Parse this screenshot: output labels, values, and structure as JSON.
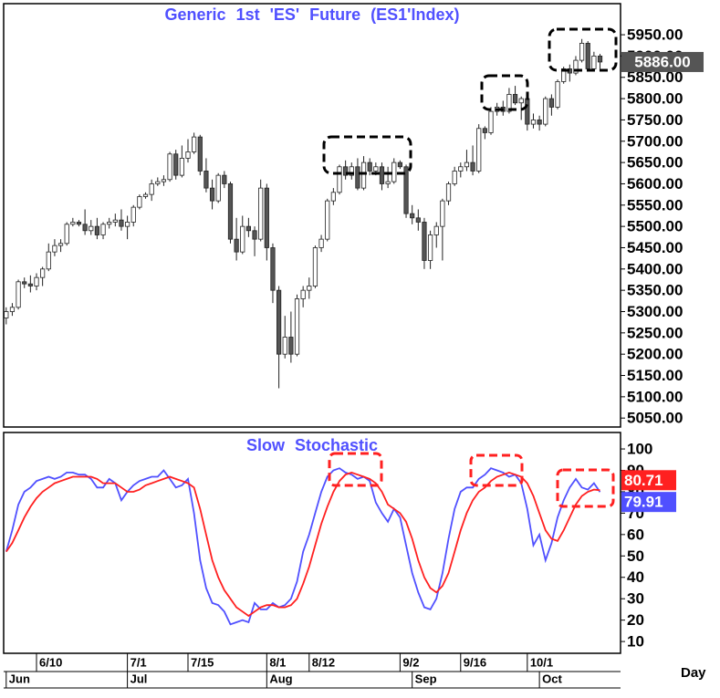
{
  "chart_data": [
    {
      "type": "candlestick",
      "title": "Generic 1st 'ES' Future (ES1'Index)",
      "up_color": "#ffffff",
      "down_color": "#555555",
      "color": "#5050ff",
      "open": [
        5285,
        5300,
        5310,
        5370,
        5365,
        5360,
        5380,
        5400,
        5440,
        5455,
        5460,
        5505,
        5510,
        5505,
        5490,
        5500,
        5480,
        5505,
        5510,
        5515,
        5500,
        5510,
        5545,
        5570,
        5575,
        5600,
        5605,
        5610,
        5670,
        5620,
        5660,
        5675,
        5710,
        5630,
        5590,
        5560,
        5620,
        5600,
        5470,
        5440,
        5500,
        5490,
        5470,
        5590,
        5450,
        5350,
        5200,
        5240,
        5200,
        5330,
        5350,
        5360,
        5450,
        5470,
        5560,
        5580,
        5640,
        5620,
        5640,
        5590,
        5650,
        5630,
        5640,
        5600,
        5605,
        5650,
        5640,
        5530,
        5520,
        5510,
        5420,
        5480,
        5500,
        5560,
        5600,
        5630,
        5640,
        5650,
        5630,
        5730,
        5720,
        5770,
        5780,
        5770,
        5810,
        5790,
        5800,
        5740,
        5750,
        5740,
        5800,
        5780,
        5840,
        5870,
        5860,
        5890,
        5930,
        5870,
        5900
      ],
      "high": [
        5310,
        5320,
        5375,
        5380,
        5385,
        5390,
        5405,
        5460,
        5470,
        5470,
        5510,
        5520,
        5515,
        5540,
        5515,
        5520,
        5510,
        5520,
        5530,
        5540,
        5525,
        5550,
        5575,
        5580,
        5610,
        5615,
        5620,
        5675,
        5680,
        5690,
        5705,
        5720,
        5715,
        5660,
        5610,
        5625,
        5630,
        5605,
        5520,
        5525,
        5520,
        5500,
        5610,
        5600,
        5460,
        5360,
        5290,
        5300,
        5340,
        5360,
        5380,
        5455,
        5480,
        5565,
        5590,
        5645,
        5655,
        5650,
        5660,
        5665,
        5660,
        5650,
        5650,
        5640,
        5660,
        5655,
        5645,
        5550,
        5540,
        5520,
        5490,
        5510,
        5565,
        5605,
        5640,
        5650,
        5680,
        5690,
        5740,
        5735,
        5780,
        5790,
        5795,
        5825,
        5830,
        5805,
        5805,
        5765,
        5760,
        5805,
        5810,
        5845,
        5875,
        5880,
        5900,
        5940,
        5935,
        5910,
        5905
      ],
      "low": [
        5270,
        5290,
        5305,
        5355,
        5345,
        5350,
        5360,
        5395,
        5430,
        5440,
        5455,
        5500,
        5500,
        5480,
        5480,
        5470,
        5470,
        5495,
        5500,
        5490,
        5470,
        5500,
        5540,
        5565,
        5560,
        5595,
        5595,
        5605,
        5610,
        5615,
        5650,
        5670,
        5620,
        5580,
        5540,
        5555,
        5590,
        5460,
        5420,
        5435,
        5475,
        5430,
        5465,
        5420,
        5320,
        5120,
        5190,
        5180,
        5195,
        5310,
        5330,
        5355,
        5440,
        5465,
        5550,
        5575,
        5610,
        5610,
        5585,
        5585,
        5620,
        5620,
        5585,
        5590,
        5600,
        5635,
        5520,
        5505,
        5490,
        5400,
        5400,
        5450,
        5420,
        5550,
        5595,
        5615,
        5630,
        5620,
        5625,
        5705,
        5715,
        5760,
        5760,
        5765,
        5785,
        5750,
        5725,
        5730,
        5725,
        5735,
        5760,
        5775,
        5835,
        5840,
        5855,
        5885,
        5865,
        5865,
        5870
      ],
      "close": [
        5300,
        5310,
        5370,
        5365,
        5360,
        5380,
        5400,
        5440,
        5455,
        5460,
        5505,
        5510,
        5505,
        5490,
        5500,
        5480,
        5505,
        5510,
        5515,
        5500,
        5510,
        5545,
        5570,
        5575,
        5600,
        5605,
        5610,
        5670,
        5620,
        5660,
        5675,
        5710,
        5630,
        5590,
        5560,
        5620,
        5600,
        5470,
        5440,
        5500,
        5490,
        5470,
        5590,
        5450,
        5350,
        5200,
        5240,
        5200,
        5330,
        5350,
        5360,
        5450,
        5470,
        5560,
        5580,
        5640,
        5620,
        5640,
        5590,
        5650,
        5630,
        5640,
        5600,
        5605,
        5650,
        5640,
        5530,
        5520,
        5510,
        5420,
        5480,
        5500,
        5560,
        5600,
        5630,
        5640,
        5650,
        5630,
        5730,
        5720,
        5770,
        5780,
        5770,
        5810,
        5790,
        5800,
        5740,
        5750,
        5740,
        5800,
        5780,
        5840,
        5870,
        5860,
        5890,
        5930,
        5870,
        5900,
        5886
      ],
      "last_close_label": "5886.00",
      "ylim": [
        5029,
        6023
      ],
      "yticks": [
        {
          "value": 5050,
          "label": "5050.00"
        },
        {
          "value": 5100,
          "label": "5100.00"
        },
        {
          "value": 5150,
          "label": "5150.00"
        },
        {
          "value": 5200,
          "label": "5200.00"
        },
        {
          "value": 5250,
          "label": "5250.00"
        },
        {
          "value": 5300,
          "label": "5300.00"
        },
        {
          "value": 5350,
          "label": "5350.00"
        },
        {
          "value": 5400,
          "label": "5400.00"
        },
        {
          "value": 5450,
          "label": "5450.00"
        },
        {
          "value": 5500,
          "label": "5500.00"
        },
        {
          "value": 5550,
          "label": "5550.00"
        },
        {
          "value": 5600,
          "label": "5600.00"
        },
        {
          "value": 5650,
          "label": "5650.00"
        },
        {
          "value": 5700,
          "label": "5700.00"
        },
        {
          "value": 5750,
          "label": "5750.00"
        },
        {
          "value": 5800,
          "label": "5800.00"
        },
        {
          "value": 5850,
          "label": "5850.00"
        },
        {
          "value": 5900,
          "label": "5900.00"
        },
        {
          "value": 5950,
          "label": "5950.00"
        }
      ]
    },
    {
      "type": "line",
      "title": "Slow Stochastic",
      "color": "#5050ff",
      "x_label": "Day",
      "categories": [
        null,
        null,
        null,
        null,
        null,
        "6/10",
        null,
        null,
        null,
        null,
        null,
        null,
        null,
        null,
        null,
        null,
        null,
        null,
        null,
        null,
        "7/1",
        null,
        null,
        null,
        null,
        null,
        null,
        null,
        null,
        null,
        "7/15",
        null,
        null,
        null,
        null,
        null,
        null,
        null,
        null,
        null,
        null,
        null,
        null,
        "8/1",
        null,
        null,
        null,
        null,
        null,
        null,
        "8/12",
        null,
        null,
        null,
        null,
        null,
        null,
        null,
        null,
        null,
        null,
        null,
        null,
        null,
        null,
        "9/2",
        null,
        null,
        null,
        null,
        null,
        null,
        null,
        null,
        null,
        "9/16",
        null,
        null,
        null,
        null,
        null,
        null,
        null,
        null,
        null,
        null,
        "10/1",
        null,
        null,
        null,
        null,
        null,
        null,
        null,
        null,
        null,
        null,
        null,
        null
      ],
      "months": [
        "Jun",
        null,
        null,
        null,
        null,
        null,
        null,
        null,
        null,
        null,
        null,
        null,
        null,
        null,
        null,
        null,
        null,
        null,
        null,
        null,
        "Jul",
        null,
        null,
        null,
        null,
        null,
        null,
        null,
        null,
        null,
        null,
        null,
        null,
        null,
        null,
        null,
        null,
        null,
        null,
        null,
        null,
        null,
        null,
        "Aug",
        null,
        null,
        null,
        null,
        null,
        null,
        null,
        null,
        null,
        null,
        null,
        null,
        null,
        null,
        null,
        null,
        null,
        null,
        null,
        null,
        null,
        null,
        null,
        "Sep",
        null,
        null,
        null,
        null,
        null,
        null,
        null,
        null,
        null,
        null,
        null,
        null,
        null,
        null,
        null,
        null,
        null,
        null,
        null,
        null,
        "Oct",
        null,
        null,
        null,
        null,
        null,
        null,
        null,
        null,
        null,
        null,
        null,
        null
      ],
      "series": [
        {
          "color": "#5050ff",
          "values": [
            52,
            62,
            74,
            80,
            82,
            85,
            86,
            87,
            86,
            87,
            89,
            89,
            88,
            88,
            86,
            82,
            82,
            86,
            84,
            76,
            80,
            83,
            85,
            86,
            87,
            87,
            90,
            86,
            82,
            83,
            86,
            70,
            48,
            35,
            28,
            27,
            24,
            18,
            19,
            20,
            19,
            28,
            25,
            25,
            28,
            26,
            27,
            30,
            38,
            52,
            60,
            70,
            80,
            87,
            90,
            91,
            89,
            88,
            86,
            87,
            85,
            75,
            70,
            66,
            72,
            68,
            55,
            42,
            33,
            26,
            25,
            30,
            42,
            58,
            72,
            80,
            82,
            82,
            86,
            88,
            91,
            90,
            89,
            87,
            88,
            84,
            72,
            55,
            60,
            48,
            56,
            68,
            76,
            82,
            86,
            82,
            81,
            84,
            79.91
          ]
        },
        {
          "color": "#ff2020",
          "values": [
            52,
            56,
            62,
            68,
            73,
            77,
            80,
            82,
            84,
            85,
            86,
            87,
            87,
            87,
            87,
            86,
            84,
            84,
            84,
            82,
            80,
            80,
            81,
            83,
            84,
            85,
            86,
            87,
            86,
            85,
            84,
            82,
            72,
            60,
            48,
            40,
            34,
            30,
            26,
            24,
            22,
            24,
            26,
            27,
            27,
            26,
            26,
            27,
            30,
            37,
            45,
            55,
            65,
            73,
            80,
            85,
            88,
            89,
            88,
            87,
            86,
            84,
            80,
            74,
            72,
            70,
            66,
            58,
            48,
            40,
            35,
            33,
            36,
            42,
            52,
            62,
            70,
            76,
            80,
            82,
            85,
            87,
            88,
            89,
            88,
            87,
            84,
            78,
            70,
            62,
            58,
            57,
            62,
            68,
            74,
            78,
            80,
            81,
            80.71
          ]
        }
      ],
      "ylim": [
        4.5,
        107.7
      ],
      "yticks": [
        10,
        20,
        30,
        40,
        50,
        60,
        70,
        80,
        90,
        100
      ]
    }
  ]
}
